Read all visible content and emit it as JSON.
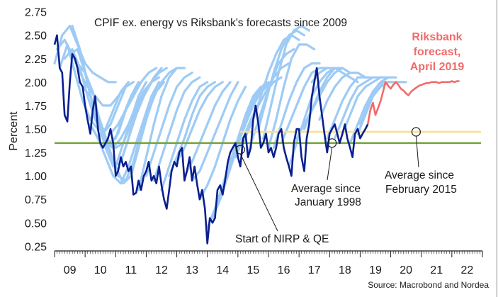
{
  "chart_data": {
    "type": "line",
    "title": "CPIF ex. energy vs Riksbank's forecasts since 2009",
    "ylabel": "Percent",
    "xlabel": "",
    "ylim": [
      0.2,
      2.8
    ],
    "xlim": [
      2009.0,
      2023.0
    ],
    "yticks": [
      "0.25",
      "0.50",
      "0.75",
      "1.00",
      "1.25",
      "1.50",
      "1.75",
      "2.00",
      "2.25",
      "2.50",
      "2.75"
    ],
    "xticks": [
      "09",
      "10",
      "11",
      "12",
      "13",
      "14",
      "15",
      "16",
      "17",
      "18",
      "19",
      "20",
      "21",
      "22"
    ],
    "grid": false,
    "source": "Source: Macrobond and Nordea",
    "colors": {
      "actual": "#0a1f8f",
      "forecasts": "#9ecbf5",
      "riksbank_forecast": "#f26a6a",
      "avg_1998": "#7aa63c",
      "avg_2015": "#f7e08e",
      "text": "#1a1a1a"
    },
    "series": [
      {
        "name": "CPIF ex. energy",
        "x": [
          2009.0,
          2009.08,
          2009.17,
          2009.25,
          2009.33,
          2009.42,
          2009.5,
          2009.58,
          2009.67,
          2009.75,
          2009.83,
          2009.92,
          2010.0,
          2010.08,
          2010.17,
          2010.25,
          2010.33,
          2010.42,
          2010.5,
          2010.58,
          2010.67,
          2010.75,
          2010.83,
          2010.92,
          2011.0,
          2011.08,
          2011.17,
          2011.25,
          2011.33,
          2011.42,
          2011.5,
          2011.58,
          2011.67,
          2011.75,
          2011.83,
          2011.92,
          2012.0,
          2012.08,
          2012.17,
          2012.25,
          2012.33,
          2012.42,
          2012.5,
          2012.58,
          2012.67,
          2012.75,
          2012.83,
          2012.92,
          2013.0,
          2013.08,
          2013.17,
          2013.25,
          2013.33,
          2013.42,
          2013.5,
          2013.58,
          2013.67,
          2013.75,
          2013.83,
          2013.92,
          2014.0,
          2014.08,
          2014.17,
          2014.25,
          2014.33,
          2014.42,
          2014.5,
          2014.58,
          2014.67,
          2014.75,
          2014.83,
          2014.92,
          2015.0,
          2015.08,
          2015.17,
          2015.25,
          2015.33,
          2015.42,
          2015.5,
          2015.58,
          2015.67,
          2015.75,
          2015.83,
          2015.92,
          2016.0,
          2016.08,
          2016.17,
          2016.25,
          2016.33,
          2016.42,
          2016.5,
          2016.58,
          2016.67,
          2016.75,
          2016.83,
          2016.92,
          2017.0,
          2017.08,
          2017.17,
          2017.25,
          2017.33,
          2017.42,
          2017.5,
          2017.58,
          2017.67,
          2017.75,
          2017.83,
          2017.92,
          2018.0,
          2018.08,
          2018.17,
          2018.25,
          2018.33,
          2018.42,
          2018.5,
          2018.58,
          2018.67,
          2018.75,
          2018.83,
          2018.92,
          2019.0,
          2019.08,
          2019.17,
          2019.25
        ],
        "values": [
          2.4,
          2.5,
          2.15,
          2.1,
          1.65,
          1.58,
          2.0,
          2.3,
          2.25,
          2.15,
          2.0,
          1.95,
          1.75,
          1.6,
          1.45,
          1.7,
          1.85,
          1.5,
          1.35,
          1.3,
          1.35,
          1.4,
          1.5,
          1.35,
          1.0,
          1.05,
          1.2,
          1.1,
          1.15,
          1.05,
          1.1,
          0.8,
          0.82,
          0.95,
          0.85,
          1.0,
          1.05,
          1.15,
          0.95,
          1.0,
          0.92,
          1.1,
          0.9,
          0.75,
          0.65,
          0.85,
          1.05,
          1.15,
          1.1,
          1.25,
          1.3,
          0.95,
          1.05,
          1.2,
          0.95,
          1.1,
          0.9,
          0.75,
          0.85,
          0.65,
          0.28,
          0.55,
          0.5,
          0.55,
          0.85,
          0.9,
          0.8,
          0.95,
          1.15,
          1.25,
          1.3,
          1.35,
          1.2,
          1.1,
          1.4,
          1.45,
          1.2,
          1.3,
          1.6,
          1.75,
          1.55,
          1.3,
          1.35,
          1.45,
          1.25,
          1.3,
          1.2,
          1.3,
          1.45,
          1.5,
          1.3,
          1.2,
          1.1,
          1.0,
          1.35,
          1.5,
          1.5,
          1.2,
          1.05,
          1.4,
          1.55,
          1.85,
          2.0,
          2.15,
          1.85,
          1.65,
          1.45,
          1.25,
          1.45,
          1.5,
          1.55,
          1.45,
          1.35,
          1.45,
          1.55,
          1.4,
          1.3,
          1.2,
          1.45,
          1.5,
          1.4,
          1.45,
          1.5,
          1.55
        ]
      },
      {
        "name": "Riksbank forecast, April 2019",
        "x": [
          2019.25,
          2019.33,
          2019.42,
          2019.5,
          2019.58,
          2019.67,
          2019.75,
          2019.83,
          2019.92,
          2020.0,
          2020.08,
          2020.17,
          2020.25,
          2020.33,
          2020.42,
          2020.5,
          2020.58,
          2020.67,
          2020.75,
          2020.83,
          2020.92,
          2021.0,
          2021.08,
          2021.17,
          2021.25,
          2021.33,
          2021.42,
          2021.5,
          2021.58,
          2021.67,
          2021.75,
          2021.83,
          2021.92,
          2022.0,
          2022.08,
          2022.17,
          2022.25
        ],
        "values": [
          1.55,
          1.7,
          1.78,
          1.65,
          1.72,
          1.8,
          1.9,
          2.0,
          1.96,
          1.93,
          1.97,
          2.0,
          1.97,
          1.93,
          1.91,
          1.88,
          1.86,
          1.9,
          1.92,
          1.94,
          1.96,
          1.97,
          1.98,
          1.99,
          1.99,
          2.0,
          2.0,
          2.0,
          1.99,
          2.0,
          2.0,
          2.0,
          2.0,
          2.01,
          2.0,
          2.01,
          2.01
        ]
      }
    ],
    "forecast_bundle": [
      {
        "x0": 2009.0,
        "values": [
          2.2,
          2.5,
          2.6,
          2.4,
          2.2,
          2.1,
          2.05,
          2.0,
          2.0
        ]
      },
      {
        "x0": 2009.08,
        "values": [
          2.35,
          2.45,
          2.3,
          2.1,
          1.95,
          1.85,
          1.75,
          1.75,
          1.85,
          1.95,
          2.0
        ]
      },
      {
        "x0": 2009.17,
        "values": [
          2.15,
          2.4,
          2.1,
          1.8,
          1.6,
          1.5,
          1.5,
          1.7,
          1.9,
          2.0
        ]
      },
      {
        "x0": 2009.33,
        "values": [
          2.25,
          2.35,
          2.15,
          1.85,
          1.6,
          1.45,
          1.55,
          1.75,
          1.95,
          2.0
        ]
      },
      {
        "x0": 2009.5,
        "values": [
          2.3,
          2.35,
          2.1,
          1.75,
          1.5,
          1.35,
          1.4,
          1.65,
          1.85,
          2.0
        ]
      },
      {
        "x0": 2009.58,
        "values": [
          2.6,
          2.35,
          2.0,
          1.65,
          1.45,
          1.35,
          1.45,
          1.7,
          1.9,
          2.0
        ]
      },
      {
        "x0": 2009.75,
        "values": [
          2.2,
          2.1,
          1.9,
          1.55,
          1.35,
          1.3,
          1.35,
          1.6,
          1.85,
          2.0
        ]
      },
      {
        "x0": 2009.92,
        "values": [
          1.95,
          1.85,
          1.6,
          1.3,
          1.1,
          1.15,
          1.4,
          1.7,
          1.9,
          2.0
        ]
      },
      {
        "x0": 2010.17,
        "values": [
          1.55,
          1.4,
          1.2,
          1.0,
          0.92,
          1.1,
          1.35,
          1.6,
          1.85,
          2.0
        ]
      },
      {
        "x0": 2010.33,
        "values": [
          1.75,
          1.5,
          1.25,
          1.0,
          0.95,
          1.15,
          1.45,
          1.7,
          1.9,
          2.0
        ]
      },
      {
        "x0": 2010.5,
        "values": [
          1.45,
          1.3,
          1.1,
          0.92,
          1.0,
          1.3,
          1.6,
          1.85,
          2.0
        ]
      },
      {
        "x0": 2010.67,
        "values": [
          1.35,
          1.3,
          1.4,
          1.55,
          1.75,
          1.9,
          2.0,
          2.05
        ]
      },
      {
        "x0": 2010.83,
        "values": [
          1.45,
          1.55,
          1.7,
          1.85,
          2.0,
          2.1,
          2.15
        ]
      },
      {
        "x0": 2011.0,
        "values": [
          1.1,
          1.35,
          1.55,
          1.75,
          1.9,
          2.05,
          2.15
        ]
      },
      {
        "x0": 2011.17,
        "values": [
          1.15,
          1.4,
          1.65,
          1.85,
          2.0,
          2.1,
          2.15
        ]
      },
      {
        "x0": 2011.5,
        "values": [
          1.0,
          1.3,
          1.6,
          1.85,
          2.0,
          2.1,
          2.15
        ]
      },
      {
        "x0": 2011.75,
        "values": [
          0.85,
          1.2,
          1.55,
          1.85,
          2.05,
          2.15,
          2.15
        ]
      },
      {
        "x0": 2012.0,
        "values": [
          1.0,
          1.25,
          1.5,
          1.75,
          1.95,
          2.05,
          2.1
        ]
      },
      {
        "x0": 2012.25,
        "values": [
          0.95,
          1.2,
          1.45,
          1.7,
          1.9,
          2.0,
          2.05
        ]
      },
      {
        "x0": 2012.5,
        "values": [
          0.85,
          1.1,
          1.35,
          1.6,
          1.8,
          1.95,
          2.0
        ]
      },
      {
        "x0": 2012.75,
        "values": [
          1.0,
          1.2,
          1.4,
          1.65,
          1.85,
          1.95,
          2.0
        ]
      },
      {
        "x0": 2013.0,
        "values": [
          1.15,
          1.3,
          1.5,
          1.7,
          1.85,
          1.95,
          2.0
        ]
      },
      {
        "x0": 2013.25,
        "values": [
          1.0,
          1.15,
          1.35,
          1.55,
          1.75,
          1.9,
          2.0
        ]
      },
      {
        "x0": 2013.5,
        "values": [
          0.95,
          1.05,
          1.25,
          1.45,
          1.65,
          1.85,
          2.0
        ]
      },
      {
        "x0": 2013.75,
        "values": [
          0.75,
          0.9,
          1.1,
          1.35,
          1.6,
          1.8,
          1.95
        ]
      },
      {
        "x0": 2014.0,
        "values": [
          0.45,
          0.65,
          0.9,
          1.15,
          1.4,
          1.65,
          1.85,
          1.95
        ]
      },
      {
        "x0": 2014.17,
        "values": [
          0.55,
          0.75,
          1.0,
          1.25,
          1.5,
          1.75,
          1.9,
          2.0
        ]
      },
      {
        "x0": 2014.33,
        "values": [
          0.7,
          0.95,
          1.2,
          1.45,
          1.65,
          1.85,
          1.95,
          2.0
        ]
      },
      {
        "x0": 2014.5,
        "values": [
          0.85,
          1.1,
          1.35,
          1.55,
          1.75,
          1.9,
          2.0
        ]
      },
      {
        "x0": 2014.67,
        "values": [
          1.1,
          1.3,
          1.5,
          1.7,
          1.85,
          1.95,
          2.0
        ]
      },
      {
        "x0": 2014.92,
        "values": [
          1.2,
          1.4,
          1.6,
          1.75,
          1.9,
          2.0,
          2.05
        ]
      },
      {
        "x0": 2015.17,
        "values": [
          1.35,
          1.55,
          1.75,
          1.9,
          2.05,
          2.15,
          2.2
        ]
      },
      {
        "x0": 2015.33,
        "values": [
          1.25,
          1.5,
          1.75,
          2.0,
          2.2,
          2.3,
          2.35
        ]
      },
      {
        "x0": 2015.5,
        "values": [
          1.6,
          1.85,
          2.1,
          2.3,
          2.45,
          2.5,
          2.45
        ]
      },
      {
        "x0": 2015.67,
        "values": [
          1.5,
          1.8,
          2.1,
          2.35,
          2.5,
          2.55,
          2.5
        ]
      },
      {
        "x0": 2015.83,
        "values": [
          1.4,
          1.75,
          2.1,
          2.4,
          2.55,
          2.6,
          2.55
        ]
      },
      {
        "x0": 2016.0,
        "values": [
          1.3,
          1.6,
          1.95,
          2.25,
          2.4,
          2.4,
          2.35
        ]
      },
      {
        "x0": 2016.17,
        "values": [
          1.3,
          1.55,
          1.8,
          2.0,
          2.15,
          2.2,
          2.2
        ]
      },
      {
        "x0": 2016.42,
        "values": [
          1.35,
          1.55,
          1.75,
          1.95,
          2.1,
          2.15,
          2.15
        ]
      },
      {
        "x0": 2016.67,
        "values": [
          1.1,
          1.35,
          1.6,
          1.85,
          2.0,
          2.1,
          2.15
        ]
      },
      {
        "x0": 2016.92,
        "values": [
          1.4,
          1.55,
          1.7,
          1.85,
          2.0,
          2.1,
          2.15
        ]
      },
      {
        "x0": 2017.17,
        "values": [
          1.5,
          1.7,
          1.9,
          2.05,
          2.15,
          2.15,
          2.1
        ]
      },
      {
        "x0": 2017.42,
        "values": [
          2.0,
          2.1,
          2.15,
          2.15,
          2.1,
          2.05,
          2.0
        ]
      },
      {
        "x0": 2017.67,
        "values": [
          1.6,
          1.8,
          1.95,
          2.05,
          2.1,
          2.1,
          2.05
        ]
      },
      {
        "x0": 2017.92,
        "values": [
          1.4,
          1.6,
          1.8,
          1.95,
          2.05,
          2.05,
          2.05
        ]
      },
      {
        "x0": 2018.17,
        "values": [
          1.4,
          1.6,
          1.8,
          1.95,
          2.0,
          2.05,
          2.05
        ]
      },
      {
        "x0": 2018.42,
        "values": [
          1.45,
          1.65,
          1.85,
          1.95,
          2.0,
          2.05,
          2.05
        ]
      },
      {
        "x0": 2018.67,
        "values": [
          1.35,
          1.55,
          1.75,
          1.9,
          2.0,
          2.05,
          2.05
        ]
      },
      {
        "x0": 2018.92,
        "values": [
          1.45,
          1.65,
          1.85,
          1.95,
          2.0,
          2.0,
          2.0
        ]
      },
      {
        "x0": 2019.0,
        "values": [
          1.55,
          1.75,
          1.9,
          2.0,
          2.0,
          2.0,
          2.0
        ]
      }
    ],
    "averages": [
      {
        "name": "Average since January 1998",
        "value": 1.35,
        "x_from": 2009.0,
        "x_to": 2023.0
      },
      {
        "name": "Average since February 2015",
        "value": 1.47,
        "x_from": 2015.08,
        "x_to": 2023.0
      }
    ],
    "annotations": [
      {
        "id": "nirp",
        "text": "Start of NIRP & QE",
        "point": [
          2015.08,
          1.28
        ]
      },
      {
        "id": "avg1998",
        "lines": [
          "Average since",
          "January 1998"
        ],
        "point": [
          2018.08,
          1.35
        ]
      },
      {
        "id": "avg2015",
        "lines": [
          "Average since",
          "February 2015"
        ],
        "point": [
          2020.83,
          1.47
        ]
      },
      {
        "id": "forecast",
        "lines": [
          "Riksbank",
          "forecast,",
          "April 2019"
        ]
      }
    ]
  }
}
